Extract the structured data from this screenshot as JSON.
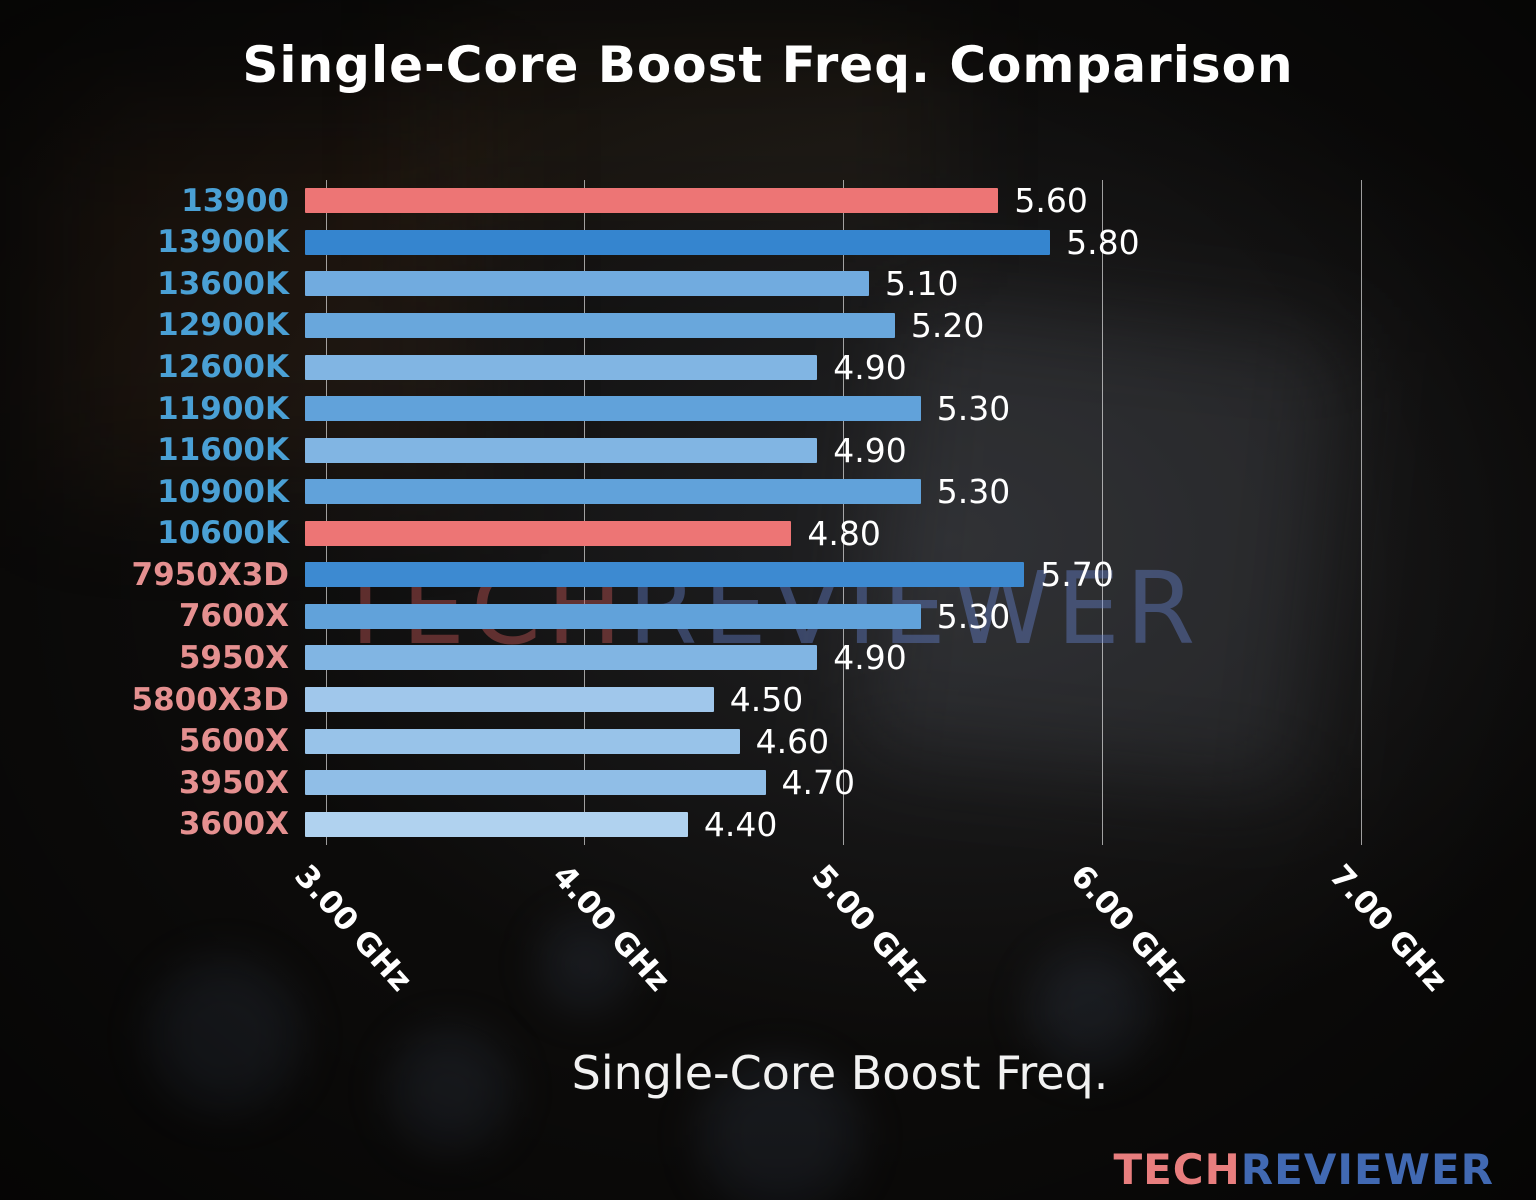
{
  "watermark": {
    "tech": "TECH",
    "reviewer": "REVIEWER"
  },
  "logo": {
    "tech": "TECH",
    "reviewer": "REVIEWER"
  },
  "colors": {
    "background": "#0c0b0a",
    "text": "#ffffff",
    "highlight_red": "#ed7575",
    "intel_label_blue": "#4aa0d5",
    "amd_label_salmon": "#e59090",
    "logo_tech": "#e87e7e",
    "logo_reviewer": "#4169b2",
    "gridline": "rgba(255,255,255,0.6)"
  },
  "chart_data": {
    "type": "bar",
    "orientation": "horizontal",
    "title": "Single-Core Boost Freq. Comparison",
    "xlabel": "Single-Core Boost Freq.",
    "xlim": [
      2.92,
      7.5
    ],
    "grid": true,
    "legend": null,
    "categories": [
      "13900",
      "13900K",
      "13600K",
      "12900K",
      "12600K",
      "11900K",
      "11600K",
      "10900K",
      "10600K",
      "7950X3D",
      "7600X",
      "5950X",
      "5800X3D",
      "5600X",
      "3950X",
      "3600X"
    ],
    "values": [
      5.6,
      5.8,
      5.1,
      5.2,
      4.9,
      5.3,
      4.9,
      5.3,
      4.8,
      5.7,
      5.3,
      4.9,
      4.5,
      4.6,
      4.7,
      4.4
    ],
    "value_labels": [
      "5.60",
      "5.80",
      "5.10",
      "5.20",
      "4.90",
      "5.30",
      "4.90",
      "5.30",
      "4.80",
      "5.70",
      "5.30",
      "4.90",
      "4.50",
      "4.60",
      "4.70",
      "4.40"
    ],
    "bar_colors": [
      "#ed7575",
      "#3585cf",
      "#71abdf",
      "#69a7dc",
      "#81b5e3",
      "#61a2da",
      "#81b5e3",
      "#61a2da",
      "#ed7575",
      "#3d8ad1",
      "#61a2da",
      "#81b5e3",
      "#a0c7eb",
      "#98c3e9",
      "#90bee7",
      "#b0d2ef"
    ],
    "label_colors": [
      "#4aa0d5",
      "#4aa0d5",
      "#4aa0d5",
      "#4aa0d5",
      "#4aa0d5",
      "#4aa0d5",
      "#4aa0d5",
      "#4aa0d5",
      "#4aa0d5",
      "#e59090",
      "#e59090",
      "#e59090",
      "#e59090",
      "#e59090",
      "#e59090",
      "#e59090"
    ],
    "x_ticks": [
      {
        "value": 3.0,
        "label": "3.00 GHz"
      },
      {
        "value": 4.0,
        "label": "4.00 GHz"
      },
      {
        "value": 5.0,
        "label": "5.00 GHz"
      },
      {
        "value": 6.0,
        "label": "6.00 GHz"
      },
      {
        "value": 7.0,
        "label": "7.00 GHz"
      }
    ]
  }
}
